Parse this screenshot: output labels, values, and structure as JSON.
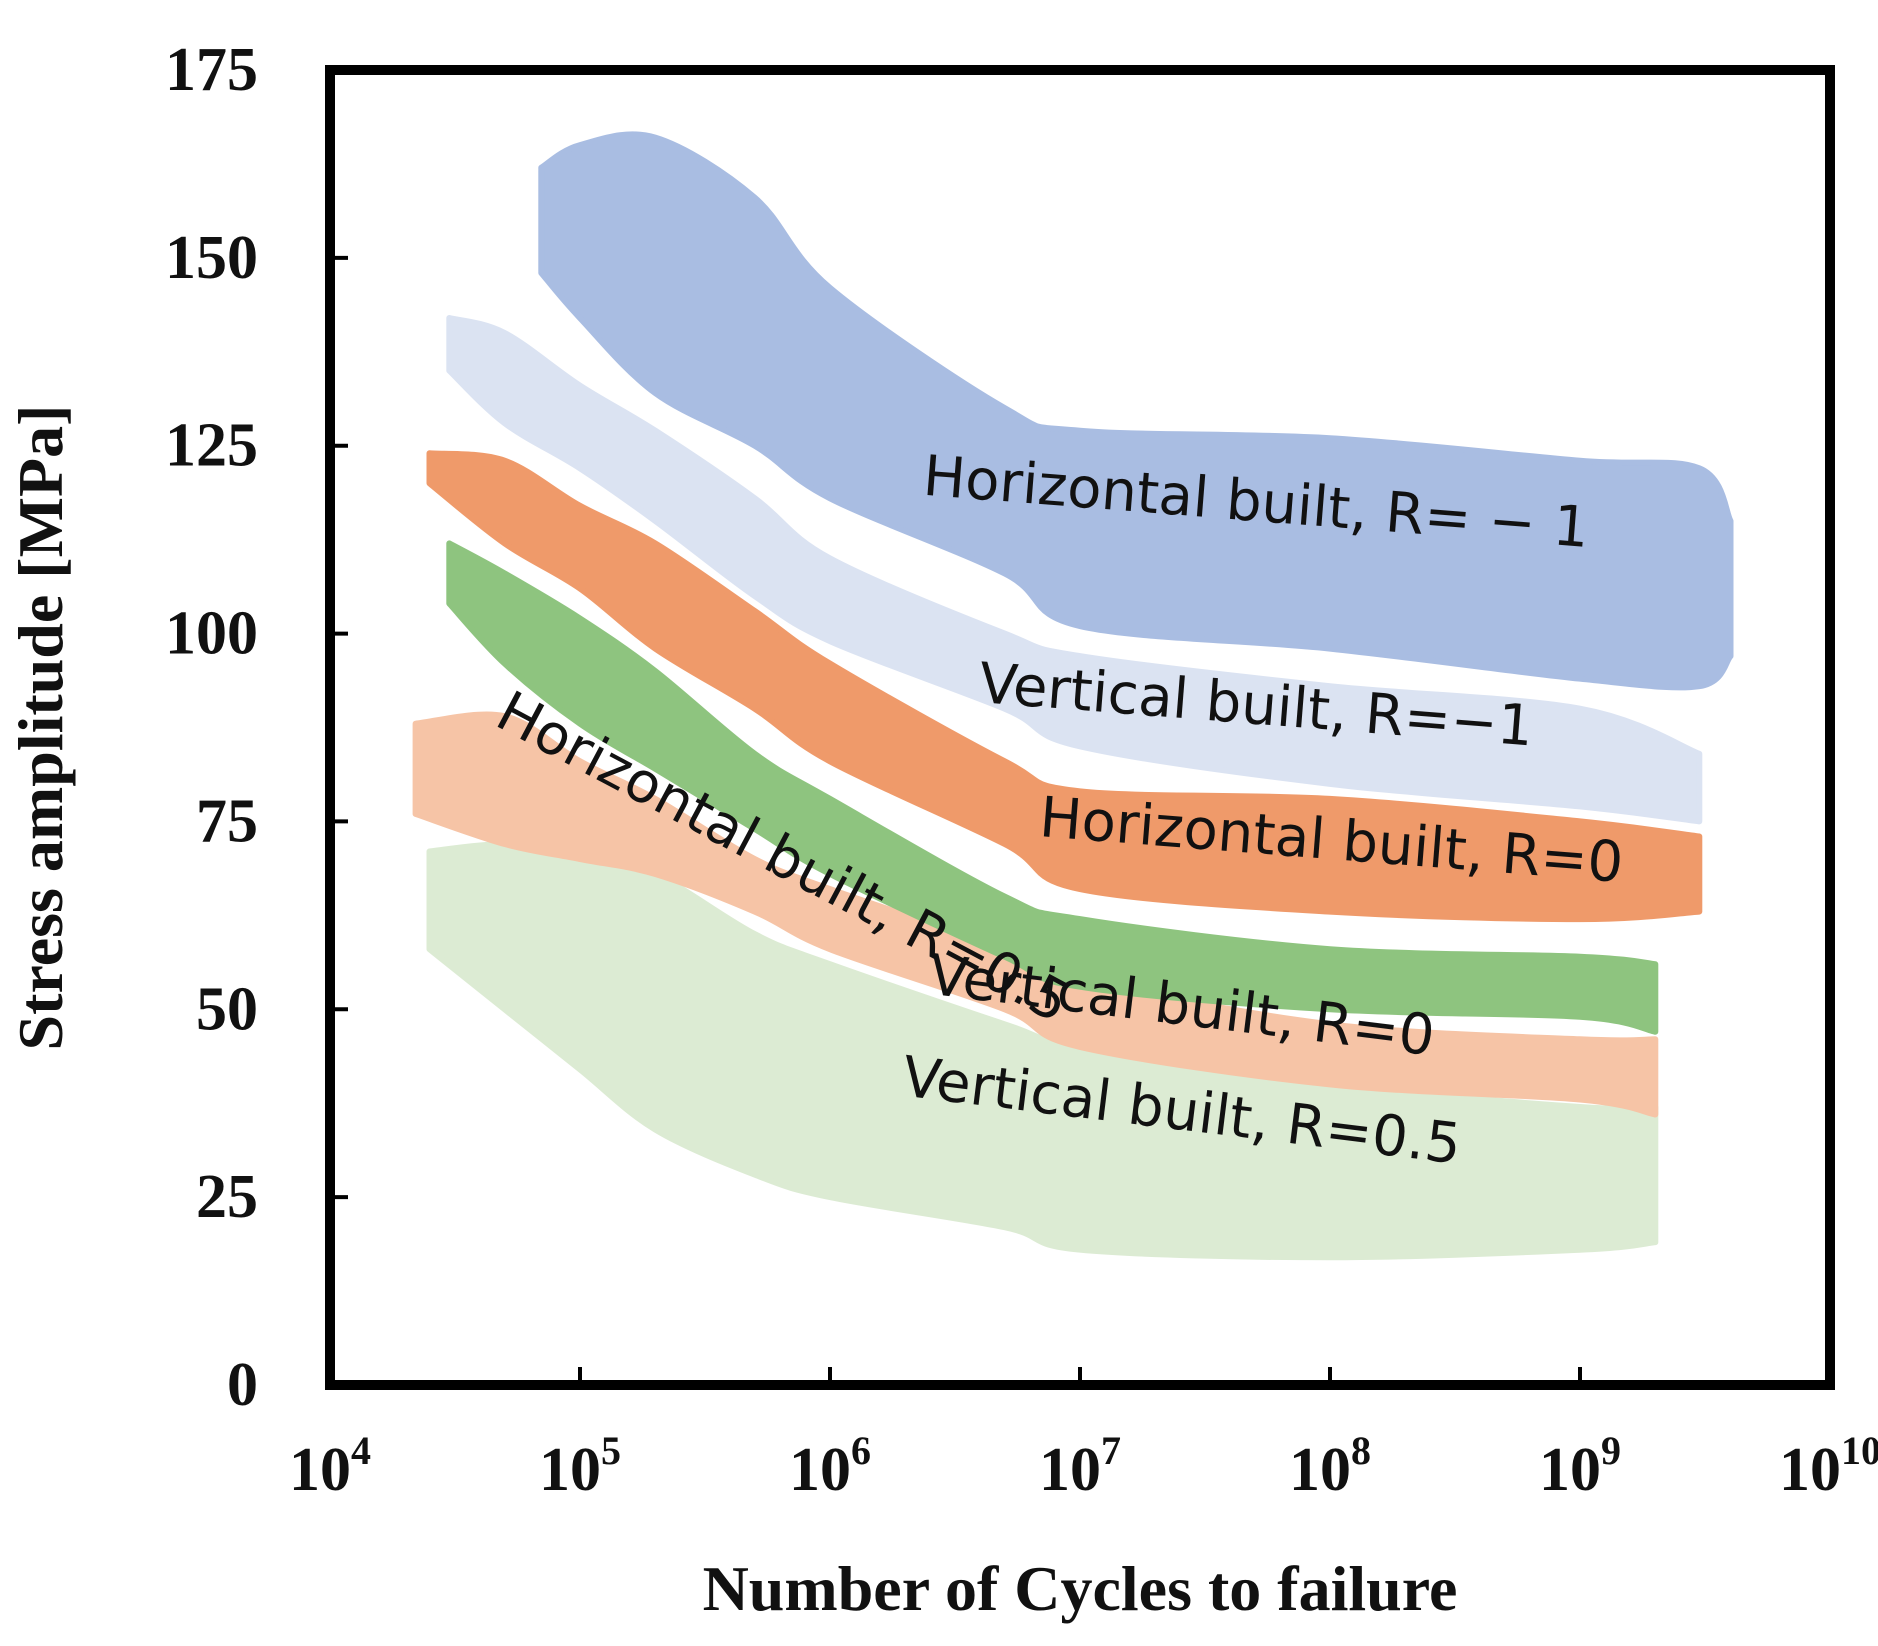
{
  "chart_data": {
    "type": "area",
    "title": "",
    "xlabel": "Number of Cycles to failure",
    "ylabel": "Stress amplitude [MPa]",
    "x_scale": "log",
    "xlim": [
      10000,
      10000000000
    ],
    "ylim": [
      0,
      175
    ],
    "grid": false,
    "legend": "none",
    "y_ticks": [
      "0",
      "25",
      "50",
      "75",
      "100",
      "125",
      "150",
      "175"
    ],
    "y_tick_values": [
      0,
      25,
      50,
      75,
      100,
      125,
      150,
      175
    ],
    "x_ticks": [
      {
        "base": "10",
        "exp": "4",
        "value": 10000
      },
      {
        "base": "10",
        "exp": "5",
        "value": 100000
      },
      {
        "base": "10",
        "exp": "6",
        "value": 1000000
      },
      {
        "base": "10",
        "exp": "7",
        "value": 10000000
      },
      {
        "base": "10",
        "exp": "8",
        "value": 100000000
      },
      {
        "base": "10",
        "exp": "9",
        "value": 1000000000
      },
      {
        "base": "10",
        "exp": "10",
        "value": 10000000000
      }
    ],
    "series": [
      {
        "name": "Vertical built, R=0.5",
        "color": "#dcebd3",
        "x": [
          25000,
          50000,
          100000,
          200000,
          500000,
          1000000,
          5000000,
          10000000,
          100000000,
          1000000000,
          2000000000
        ],
        "upper": [
          71,
          72,
          71,
          68,
          60,
          56,
          48,
          45,
          40,
          37,
          37
        ],
        "lower": [
          58,
          50,
          42,
          34,
          28,
          25,
          21,
          18,
          17,
          18,
          19
        ]
      },
      {
        "name": "Vertical built, R=0",
        "color": "#f6c4a6",
        "x": [
          22000,
          50000,
          100000,
          200000,
          500000,
          1000000,
          5000000,
          10000000,
          100000000,
          1000000000,
          2000000000
        ],
        "upper": [
          88,
          89,
          83,
          78,
          70,
          66,
          58,
          54,
          48,
          46,
          46
        ],
        "lower": [
          76,
          72,
          70,
          68,
          63,
          58,
          50,
          45,
          40,
          38,
          36
        ]
      },
      {
        "name": "Horizontal built, R=0.5",
        "color": "#8ec47f",
        "x": [
          30000,
          50000,
          100000,
          200000,
          500000,
          1000000,
          5000000,
          10000000,
          100000000,
          1000000000,
          2000000000
        ],
        "upper": [
          112,
          108,
          102,
          95,
          84,
          78,
          65,
          62,
          58,
          57,
          56
        ],
        "lower": [
          104,
          96,
          88,
          82,
          74,
          68,
          57,
          53,
          50,
          49,
          47
        ]
      },
      {
        "name": "Horizontal built, R=0",
        "color": "#ef9a6a",
        "x": [
          25000,
          50000,
          100000,
          200000,
          500000,
          1000000,
          5000000,
          10000000,
          100000000,
          1000000000,
          3000000000
        ],
        "upper": [
          124,
          123,
          117,
          112,
          103,
          96,
          83,
          79,
          78,
          75,
          73
        ],
        "lower": [
          120,
          112,
          106,
          98,
          90,
          83,
          72,
          66,
          63,
          62,
          63
        ]
      },
      {
        "name": "Vertical built, R=−1",
        "color": "#dbe3f2",
        "x": [
          30000,
          50000,
          100000,
          200000,
          500000,
          1000000,
          5000000,
          10000000,
          100000000,
          1000000000,
          3000000000
        ],
        "upper": [
          142,
          140,
          133,
          127,
          118,
          110,
          100,
          97,
          93,
          90,
          84
        ],
        "lower": [
          135,
          128,
          122,
          115,
          105,
          99,
          90,
          85,
          80,
          77,
          75
        ]
      },
      {
        "name": "Horizontal built, R= − 1",
        "color": "#a9bde2",
        "x": [
          70000,
          100000,
          200000,
          500000,
          1000000,
          5000000,
          10000000,
          100000000,
          1000000000,
          3000000000,
          4000000000
        ],
        "upper": [
          162,
          165,
          166,
          158,
          146,
          130,
          127,
          126,
          123,
          122,
          115
        ],
        "lower": [
          148,
          142,
          132,
          125,
          118,
          108,
          101,
          98,
          94,
          93,
          97
        ]
      }
    ],
    "labels": [
      {
        "text": "Horizontal built, R= − 1",
        "x": 50000000,
        "y": 115,
        "angle": 4.5
      },
      {
        "text": "Vertical built, R=−1",
        "x": 50000000,
        "y": 88,
        "angle": 4.5
      },
      {
        "text": "Horizontal built, R=0",
        "x": 100000000,
        "y": 70,
        "angle": 4.5
      },
      {
        "text": "Horizontal built, R=0.5",
        "x": 600000,
        "y": 68,
        "angle": 28
      },
      {
        "text": "Vertical built, R=0",
        "x": 25000000,
        "y": 48,
        "angle": 7
      },
      {
        "text": "Vertical built, R=0.5",
        "x": 25000000,
        "y": 34,
        "angle": 7
      }
    ]
  }
}
